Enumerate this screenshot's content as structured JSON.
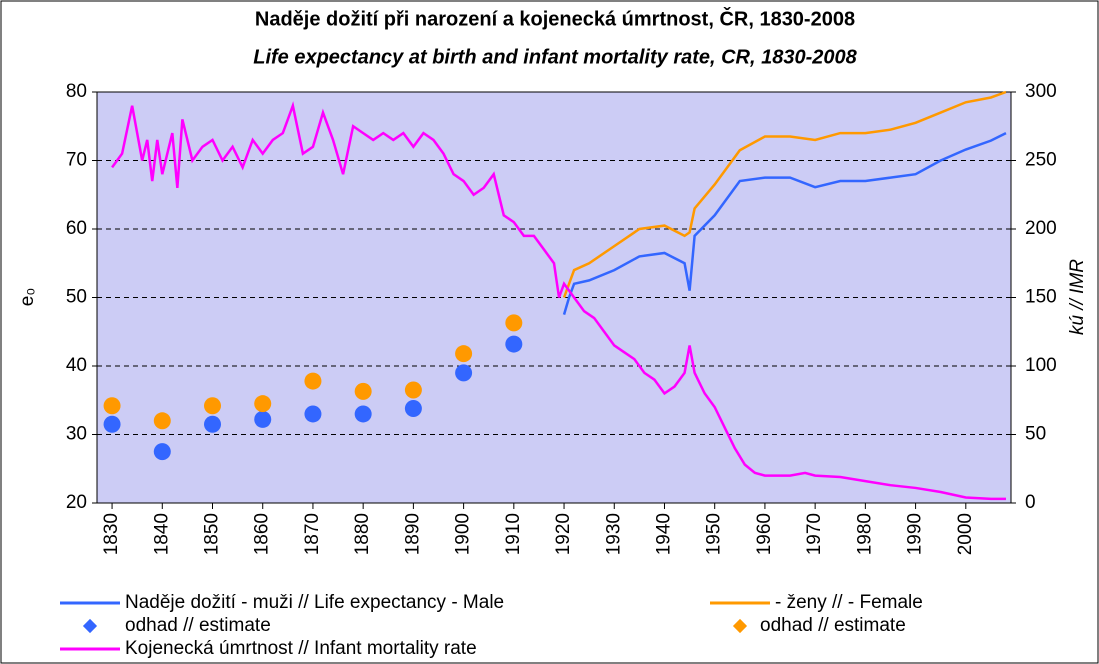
{
  "chart_data": {
    "type": "line",
    "title": "Naděje dožití při narození a kojenecká úmrtnost, ČR, 1830-2008",
    "subtitle": "Life expectancy at birth and infant mortality rate, CR, 1830-2008",
    "ylabel": "e₀",
    "y2label": "kú // IMR",
    "xlim": [
      1827,
      2009
    ],
    "xticks": [
      1830,
      1840,
      1850,
      1860,
      1870,
      1880,
      1890,
      1900,
      1910,
      1920,
      1930,
      1940,
      1950,
      1960,
      1970,
      1980,
      1990,
      2000
    ],
    "ylim": [
      20,
      80
    ],
    "yticks": [
      20,
      30,
      40,
      50,
      60,
      70,
      80
    ],
    "y2lim": [
      0,
      300
    ],
    "y2ticks": [
      0,
      50,
      100,
      150,
      200,
      250,
      300
    ],
    "grid": true,
    "legend": "bottom",
    "series": [
      {
        "name": "Naděje dožití - muži // Life expectancy - Male",
        "type": "line",
        "color": "#3366ff",
        "x": [
          1920,
          1921,
          1922,
          1925,
          1930,
          1935,
          1940,
          1944,
          1945,
          1946,
          1950,
          1955,
          1960,
          1965,
          1970,
          1975,
          1980,
          1985,
          1990,
          1995,
          2000,
          2005,
          2008
        ],
        "values": [
          47.5,
          50,
          52,
          52.5,
          54,
          56,
          56.5,
          55,
          51,
          59,
          62,
          67,
          67.5,
          67.5,
          66.1,
          67,
          67,
          67.5,
          68,
          70,
          71.6,
          72.9,
          74
        ]
      },
      {
        "name": " - ženy //  - Female",
        "type": "line",
        "color": "#ff9900",
        "x": [
          1920,
          1922,
          1925,
          1930,
          1935,
          1940,
          1944,
          1945,
          1946,
          1950,
          1955,
          1960,
          1965,
          1970,
          1975,
          1980,
          1985,
          1990,
          1995,
          2000,
          2005,
          2008
        ],
        "values": [
          50,
          54,
          55,
          57.5,
          60,
          60.5,
          59,
          59.5,
          63,
          66.5,
          71.5,
          73.5,
          73.5,
          73,
          74,
          74,
          74.5,
          75.5,
          77,
          78.5,
          79.2,
          80
        ]
      },
      {
        "name": "odhad // estimate",
        "type": "scatter",
        "color": "#3366ff",
        "x": [
          1830,
          1840,
          1850,
          1860,
          1870,
          1880,
          1890,
          1900,
          1910
        ],
        "values": [
          31.5,
          27.5,
          31.5,
          32.2,
          33,
          33,
          33.8,
          39,
          43.2
        ]
      },
      {
        "name": "odhad // estimate",
        "type": "scatter",
        "color": "#ff9900",
        "x": [
          1830,
          1840,
          1850,
          1860,
          1870,
          1880,
          1890,
          1900,
          1910
        ],
        "values": [
          34.2,
          32,
          34.2,
          34.5,
          37.8,
          36.3,
          36.5,
          41.8,
          46.3
        ]
      },
      {
        "name": "Kojenecká úmrtnost // Infant mortality rate",
        "type": "line",
        "color": "#ff00ff",
        "axis": "y2",
        "x": [
          1830,
          1832,
          1834,
          1835,
          1836,
          1837,
          1838,
          1839,
          1840,
          1842,
          1843,
          1844,
          1846,
          1848,
          1850,
          1852,
          1854,
          1856,
          1858,
          1860,
          1862,
          1864,
          1866,
          1868,
          1870,
          1872,
          1874,
          1876,
          1878,
          1880,
          1882,
          1884,
          1886,
          1888,
          1890,
          1892,
          1894,
          1896,
          1898,
          1900,
          1902,
          1904,
          1906,
          1908,
          1910,
          1912,
          1914,
          1916,
          1918,
          1919,
          1920,
          1922,
          1924,
          1926,
          1928,
          1930,
          1932,
          1934,
          1936,
          1938,
          1940,
          1942,
          1944,
          1945,
          1946,
          1948,
          1950,
          1952,
          1954,
          1956,
          1958,
          1960,
          1965,
          1968,
          1970,
          1975,
          1980,
          1985,
          1990,
          1995,
          2000,
          2005,
          2008
        ],
        "values": [
          245,
          255,
          290,
          270,
          250,
          265,
          235,
          265,
          240,
          270,
          230,
          280,
          250,
          260,
          265,
          250,
          260,
          245,
          265,
          255,
          265,
          270,
          290,
          255,
          260,
          285,
          265,
          240,
          275,
          270,
          265,
          270,
          265,
          270,
          260,
          270,
          265,
          255,
          240,
          235,
          225,
          230,
          240,
          210,
          205,
          195,
          195,
          185,
          175,
          150,
          160,
          150,
          140,
          135,
          125,
          115,
          110,
          105,
          95,
          90,
          80,
          85,
          95,
          115,
          95,
          80,
          70,
          55,
          40,
          28,
          22,
          20,
          20,
          22,
          20,
          19,
          16,
          13,
          11,
          8,
          4,
          3,
          3
        ]
      }
    ]
  }
}
